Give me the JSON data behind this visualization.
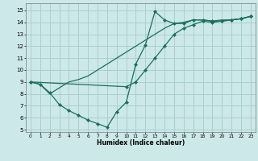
{
  "bg_color": "#cce8e8",
  "grid_color": "#aacfcf",
  "line_color": "#1a7060",
  "xlabel": "Humidex (Indice chaleur)",
  "xlim": [
    -0.5,
    23.5
  ],
  "ylim": [
    4.8,
    15.6
  ],
  "xticks": [
    0,
    1,
    2,
    3,
    4,
    5,
    6,
    7,
    8,
    9,
    10,
    11,
    12,
    13,
    14,
    15,
    16,
    17,
    18,
    19,
    20,
    21,
    22,
    23
  ],
  "yticks": [
    5,
    6,
    7,
    8,
    9,
    10,
    11,
    12,
    13,
    14,
    15
  ],
  "line1_x": [
    0,
    1,
    2,
    3,
    4,
    5,
    6,
    7,
    8,
    9,
    10,
    11,
    12,
    13,
    14,
    15,
    16,
    17,
    18,
    19,
    20,
    21,
    22,
    23
  ],
  "line1_y": [
    9.0,
    8.8,
    8.0,
    8.5,
    9.0,
    9.2,
    9.5,
    10.0,
    10.5,
    11.0,
    11.5,
    12.0,
    12.5,
    13.0,
    13.5,
    13.9,
    14.0,
    14.2,
    14.2,
    14.1,
    14.2,
    14.2,
    14.3,
    14.5
  ],
  "line2_x": [
    0,
    1,
    2,
    3,
    4,
    5,
    6,
    7,
    8,
    9,
    10,
    11,
    12,
    13,
    14,
    15,
    16,
    17,
    18,
    19,
    20,
    21,
    22,
    23
  ],
  "line2_y": [
    9.0,
    8.8,
    8.1,
    7.1,
    6.6,
    6.2,
    5.8,
    5.5,
    5.2,
    6.5,
    7.3,
    10.5,
    12.1,
    14.9,
    14.2,
    13.9,
    13.9,
    14.2,
    14.2,
    14.1,
    14.1,
    14.2,
    14.3,
    14.5
  ],
  "line3_x": [
    0,
    10,
    11,
    12,
    13,
    14,
    15,
    16,
    17,
    18,
    19,
    20,
    21,
    22,
    23
  ],
  "line3_y": [
    9.0,
    8.6,
    9.0,
    10.0,
    11.0,
    12.0,
    13.0,
    13.5,
    13.8,
    14.1,
    14.0,
    14.1,
    14.2,
    14.3,
    14.5
  ]
}
